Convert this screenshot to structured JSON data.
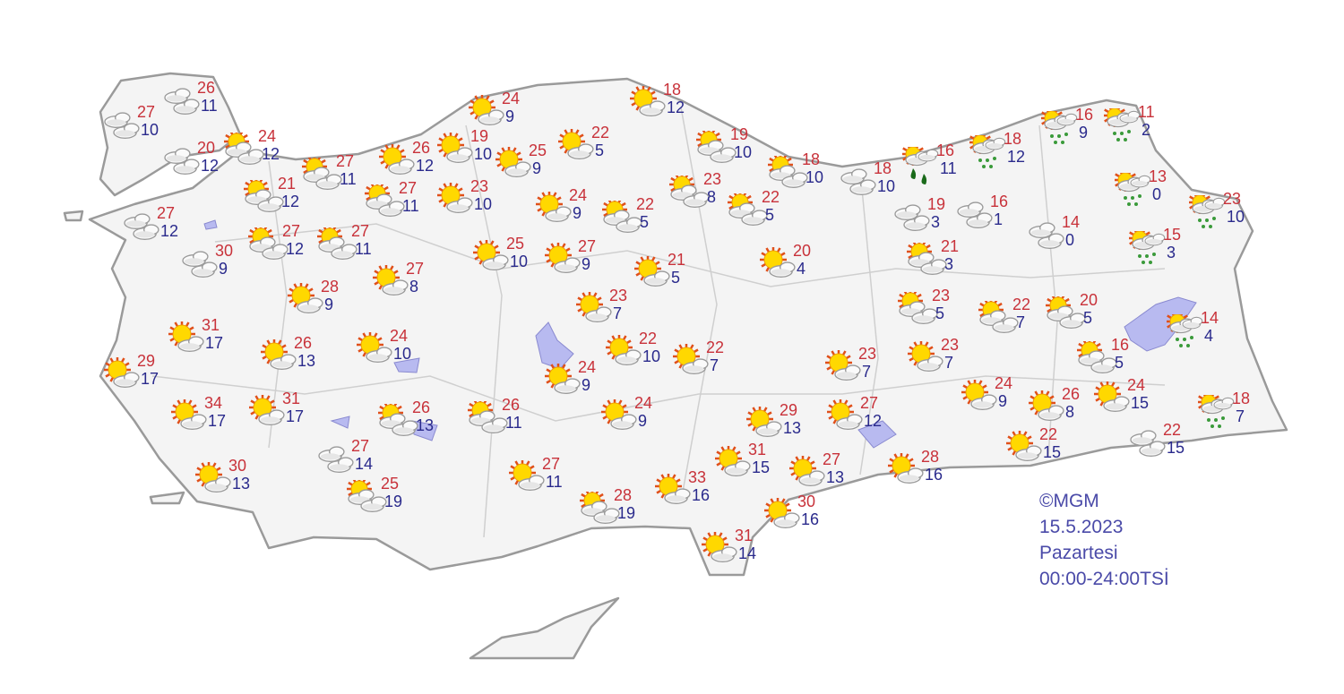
{
  "map": {
    "credit": "©MGM",
    "date": "15.5.2023",
    "day": "Pazartesi",
    "period": "00:00-24:00TSİ",
    "colors": {
      "high_temp": "#c8323a",
      "low_temp": "#2a2a8c",
      "land": "#f4f4f4",
      "border": "#9a9a9a",
      "water": "#b8baf0",
      "drizzle": "#3a9a3a",
      "heavy_rain": "#1a6a1a"
    },
    "icon_types": {
      "cloudy": "cloud-icon",
      "partly": "partly-cloudy-icon",
      "sunny": "mostly-sunny-icon",
      "rain": "rain-shower-icon",
      "heavy": "heavy-rain-icon"
    },
    "stations": [
      {
        "type": "cloudy",
        "high": "26",
        "low": "11"
      },
      {
        "type": "cloudy",
        "high": "27",
        "low": "10"
      },
      {
        "type": "cloudy",
        "high": "20",
        "low": "12"
      },
      {
        "type": "partly",
        "high": "24",
        "low": "12"
      },
      {
        "type": "cloudy",
        "high": "27",
        "low": "12"
      },
      {
        "type": "partly",
        "high": "21",
        "low": "12"
      },
      {
        "type": "partly",
        "high": "27",
        "low": "11"
      },
      {
        "type": "sunny",
        "high": "26",
        "low": "12"
      },
      {
        "type": "sunny",
        "high": "19",
        "low": "10"
      },
      {
        "type": "sunny",
        "high": "24",
        "low": "9"
      },
      {
        "type": "sunny",
        "high": "25",
        "low": "9"
      },
      {
        "type": "sunny",
        "high": "22",
        "low": "5"
      },
      {
        "type": "sunny",
        "high": "18",
        "low": "12"
      },
      {
        "type": "sunny",
        "high": "23",
        "low": "10"
      },
      {
        "type": "partly",
        "high": "27",
        "low": "11"
      },
      {
        "type": "partly",
        "high": "27",
        "low": "12"
      },
      {
        "type": "partly",
        "high": "27",
        "low": "11"
      },
      {
        "type": "cloudy",
        "high": "30",
        "low": "9"
      },
      {
        "type": "sunny",
        "high": "27",
        "low": "8"
      },
      {
        "type": "sunny",
        "high": "28",
        "low": "9"
      },
      {
        "type": "sunny",
        "high": "24",
        "low": "9"
      },
      {
        "type": "partly",
        "high": "22",
        "low": "5"
      },
      {
        "type": "partly",
        "high": "23",
        "low": "8"
      },
      {
        "type": "partly",
        "high": "22",
        "low": "5"
      },
      {
        "type": "partly",
        "high": "19",
        "low": "10"
      },
      {
        "type": "partly",
        "high": "18",
        "low": "10"
      },
      {
        "type": "cloudy",
        "high": "18",
        "low": "10"
      },
      {
        "type": "heavy",
        "high": "16",
        "low": "11"
      },
      {
        "type": "rain",
        "high": "18",
        "low": "12"
      },
      {
        "type": "rain",
        "high": "16",
        "low": "9"
      },
      {
        "type": "rain",
        "high": "11",
        "low": "2"
      },
      {
        "type": "rain",
        "high": "13",
        "low": "0"
      },
      {
        "type": "rain",
        "high": "23",
        "low": "10"
      },
      {
        "type": "rain",
        "high": "15",
        "low": "3"
      },
      {
        "type": "cloudy",
        "high": "19",
        "low": "3"
      },
      {
        "type": "cloudy",
        "high": "16",
        "low": "1"
      },
      {
        "type": "cloudy",
        "high": "14",
        "low": "0"
      },
      {
        "type": "partly",
        "high": "21",
        "low": "3"
      },
      {
        "type": "partly",
        "high": "23",
        "low": "5"
      },
      {
        "type": "partly",
        "high": "22",
        "low": "7"
      },
      {
        "type": "partly",
        "high": "20",
        "low": "5"
      },
      {
        "type": "rain",
        "high": "14",
        "low": "4"
      },
      {
        "type": "partly",
        "high": "16",
        "low": "5"
      },
      {
        "type": "sunny",
        "high": "23",
        "low": "7"
      },
      {
        "type": "sunny",
        "high": "23",
        "low": "7"
      },
      {
        "type": "sunny",
        "high": "20",
        "low": "4"
      },
      {
        "type": "sunny",
        "high": "25",
        "low": "10"
      },
      {
        "type": "sunny",
        "high": "27",
        "low": "9"
      },
      {
        "type": "sunny",
        "high": "21",
        "low": "5"
      },
      {
        "type": "sunny",
        "high": "23",
        "low": "7"
      },
      {
        "type": "sunny",
        "high": "22",
        "low": "10"
      },
      {
        "type": "sunny",
        "high": "22",
        "low": "7"
      },
      {
        "type": "sunny",
        "high": "24",
        "low": "9"
      },
      {
        "type": "sunny",
        "high": "31",
        "low": "17"
      },
      {
        "type": "sunny",
        "high": "26",
        "low": "13"
      },
      {
        "type": "sunny",
        "high": "24",
        "low": "10"
      },
      {
        "type": "sunny",
        "high": "29",
        "low": "17"
      },
      {
        "type": "sunny",
        "high": "34",
        "low": "17"
      },
      {
        "type": "sunny",
        "high": "31",
        "low": "17"
      },
      {
        "type": "partly",
        "high": "26",
        "low": "13"
      },
      {
        "type": "partly",
        "high": "26",
        "low": "11"
      },
      {
        "type": "sunny",
        "high": "24",
        "low": "9"
      },
      {
        "type": "sunny",
        "high": "29",
        "low": "13"
      },
      {
        "type": "sunny",
        "high": "27",
        "low": "12"
      },
      {
        "type": "sunny",
        "high": "24",
        "low": "9"
      },
      {
        "type": "sunny",
        "high": "26",
        "low": "8"
      },
      {
        "type": "sunny",
        "high": "24",
        "low": "15"
      },
      {
        "type": "rain",
        "high": "18",
        "low": "7"
      },
      {
        "type": "cloudy",
        "high": "22",
        "low": "15"
      },
      {
        "type": "sunny",
        "high": "22",
        "low": "15"
      },
      {
        "type": "sunny",
        "high": "28",
        "low": "16"
      },
      {
        "type": "sunny",
        "high": "27",
        "low": "13"
      },
      {
        "type": "sunny",
        "high": "31",
        "low": "15"
      },
      {
        "type": "sunny",
        "high": "33",
        "low": "16"
      },
      {
        "type": "sunny",
        "high": "30",
        "low": "16"
      },
      {
        "type": "sunny",
        "high": "31",
        "low": "14"
      },
      {
        "type": "partly",
        "high": "28",
        "low": "19"
      },
      {
        "type": "sunny",
        "high": "27",
        "low": "11"
      },
      {
        "type": "partly",
        "high": "25",
        "low": "19"
      },
      {
        "type": "cloudy",
        "high": "27",
        "low": "14"
      },
      {
        "type": "sunny",
        "high": "30",
        "low": "13"
      }
    ]
  }
}
